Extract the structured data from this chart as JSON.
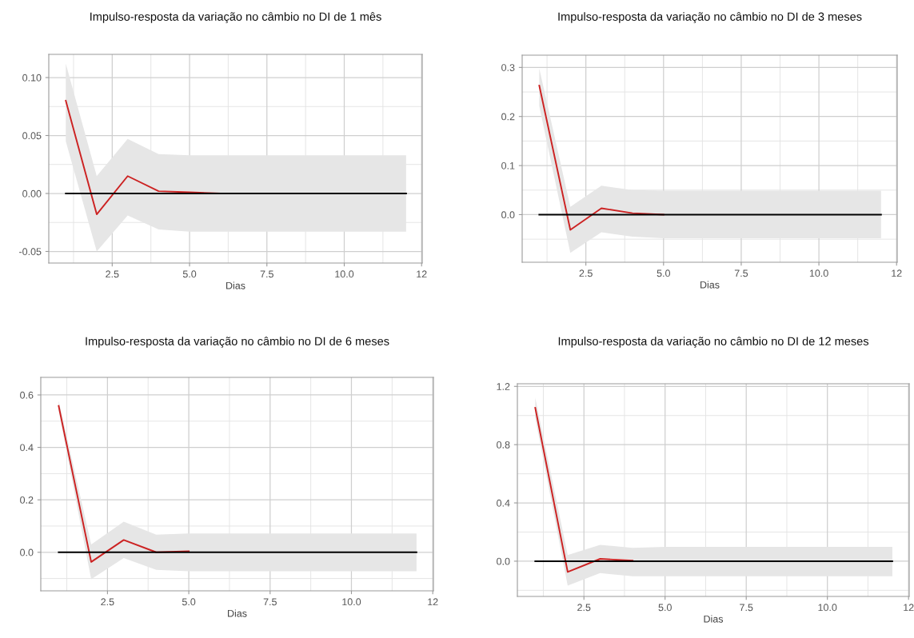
{
  "chart_data": [
    {
      "type": "line",
      "title": "Impulso-resposta da variação no câmbio no DI de 1 mês",
      "xlabel": "Dias",
      "x": [
        1,
        2,
        3,
        4,
        5,
        6,
        7,
        8,
        9,
        10,
        11,
        12
      ],
      "series": [
        {
          "color": "#cc2222",
          "values": [
            0.08,
            -0.018,
            0.015,
            0.002,
            0.001,
            0,
            0,
            null,
            null,
            null,
            null,
            null
          ],
          "lower": [
            0.045,
            -0.05,
            -0.019,
            -0.031,
            -0.033,
            -0.033,
            -0.033,
            -0.033,
            -0.033,
            -0.033,
            -0.033,
            -0.033
          ],
          "upper": [
            0.112,
            0.015,
            0.047,
            0.034,
            0.033,
            0.033,
            0.033,
            0.033,
            0.033,
            0.033,
            0.033,
            0.033
          ]
        },
        {
          "color": "#000000",
          "values": [
            0,
            0,
            0,
            0,
            0,
            0,
            0,
            0,
            0,
            0,
            0,
            0
          ]
        }
      ],
      "xlim": [
        0.45,
        12.52
      ],
      "ylim": [
        -0.06,
        0.12
      ],
      "xticks": [
        {
          "value": 2.5,
          "label": "2.5"
        },
        {
          "value": 5,
          "label": "5.0"
        },
        {
          "value": 7.5,
          "label": "7.5"
        },
        {
          "value": 10,
          "label": "10.0"
        },
        {
          "value": 12.5,
          "label": "12"
        }
      ],
      "yticks": [
        {
          "value": -0.05,
          "label": "-0.05"
        },
        {
          "value": 0,
          "label": "0.00"
        },
        {
          "value": 0.05,
          "label": "0.05"
        },
        {
          "value": 0.1,
          "label": "0.10"
        }
      ],
      "grid": true
    },
    {
      "type": "line",
      "title": "Impulso-resposta da variação no câmbio no DI de 3 meses",
      "xlabel": "Dias",
      "x": [
        1,
        2,
        3,
        4,
        5,
        6,
        7,
        8,
        9,
        10,
        11,
        12
      ],
      "series": [
        {
          "color": "#cc2222",
          "values": [
            0.263,
            -0.031,
            0.013,
            0.003,
            0,
            null,
            null,
            null,
            null,
            null,
            null,
            null
          ],
          "lower": [
            0.221,
            -0.078,
            -0.036,
            -0.045,
            -0.048,
            -0.048,
            -0.048,
            -0.048,
            -0.048,
            -0.048,
            -0.048,
            -0.048
          ],
          "upper": [
            0.298,
            0.016,
            0.059,
            0.05,
            0.049,
            0.049,
            0.049,
            0.049,
            0.049,
            0.049,
            0.049,
            0.049
          ]
        },
        {
          "color": "#000000",
          "values": [
            0,
            0,
            0,
            0,
            0,
            0,
            0,
            0,
            0,
            0,
            0,
            0
          ]
        }
      ],
      "xlim": [
        0.45,
        12.52
      ],
      "ylim": [
        -0.097,
        0.325
      ],
      "xticks": [
        {
          "value": 2.5,
          "label": "2.5"
        },
        {
          "value": 5,
          "label": "5.0"
        },
        {
          "value": 7.5,
          "label": "7.5"
        },
        {
          "value": 10,
          "label": "10.0"
        },
        {
          "value": 12.5,
          "label": "12"
        }
      ],
      "yticks": [
        {
          "value": 0,
          "label": "0.0"
        },
        0.1,
        0.2,
        0.3
      ],
      "grid": true
    },
    {
      "type": "line",
      "title": "Impulso-resposta da variação no câmbio no DI de 6 meses",
      "xlabel": "Dias",
      "x": [
        1,
        2,
        3,
        4,
        5,
        6,
        7,
        8,
        9,
        10,
        11,
        12
      ],
      "series": [
        {
          "color": "#cc2222",
          "values": [
            0.558,
            -0.037,
            0.047,
            0.0,
            0.004,
            null,
            null,
            null,
            null,
            null,
            null,
            null
          ],
          "lower": [
            0.539,
            -0.103,
            -0.022,
            -0.067,
            -0.072,
            -0.072,
            -0.072,
            -0.072,
            -0.072,
            -0.072,
            -0.072,
            -0.072
          ],
          "upper": [
            0.578,
            0.03,
            0.117,
            0.067,
            0.072,
            0.072,
            0.072,
            0.072,
            0.072,
            0.072,
            0.072,
            0.072
          ]
        },
        {
          "color": "#000000",
          "values": [
            0,
            0,
            0,
            0,
            0,
            0,
            0,
            0,
            0,
            0,
            0,
            0
          ]
        }
      ],
      "xlim": [
        0.45,
        12.52
      ],
      "ylim": [
        -0.147,
        0.667
      ],
      "xticks": [
        {
          "value": 2.5,
          "label": "2.5"
        },
        {
          "value": 5,
          "label": "5.0"
        },
        {
          "value": 7.5,
          "label": "7.5"
        },
        {
          "value": 10,
          "label": "10.0"
        },
        {
          "value": 12.5,
          "label": "12"
        }
      ],
      "yticks": [
        {
          "value": 0,
          "label": "0.0"
        },
        0.2,
        0.4,
        0.6
      ],
      "grid": true
    },
    {
      "type": "line",
      "title": "Impulso-resposta da variação no câmbio no DI de 12 meses",
      "xlabel": "Dias",
      "x": [
        1,
        2,
        3,
        4,
        5,
        6,
        7,
        8,
        9,
        10,
        11,
        12
      ],
      "series": [
        {
          "color": "#cc2222",
          "values": [
            1.053,
            -0.074,
            0.016,
            0.004,
            null,
            null,
            null,
            null,
            null,
            null,
            null,
            null
          ],
          "lower": [
            0.983,
            -0.168,
            -0.082,
            -0.104,
            -0.104,
            -0.104,
            -0.104,
            -0.104,
            -0.104,
            -0.104,
            -0.104,
            -0.104
          ],
          "upper": [
            1.123,
            0.042,
            0.112,
            0.092,
            0.098,
            0.098,
            0.098,
            0.098,
            0.098,
            0.098,
            0.098,
            0.098
          ]
        },
        {
          "color": "#000000",
          "values": [
            0,
            0,
            0,
            0,
            0,
            0,
            0,
            0,
            0,
            0,
            0,
            0
          ]
        }
      ],
      "xlim": [
        0.45,
        12.52
      ],
      "ylim": [
        -0.242,
        1.218
      ],
      "xticks": [
        {
          "value": 2.5,
          "label": "2.5"
        },
        {
          "value": 5,
          "label": "5.0"
        },
        {
          "value": 7.5,
          "label": "7.5"
        },
        {
          "value": 10,
          "label": "10.0"
        },
        {
          "value": 12.5,
          "label": "12"
        }
      ],
      "yticks": [
        {
          "value": 0,
          "label": "0.0"
        },
        0.4,
        0.8,
        1.2
      ],
      "grid": true
    }
  ]
}
